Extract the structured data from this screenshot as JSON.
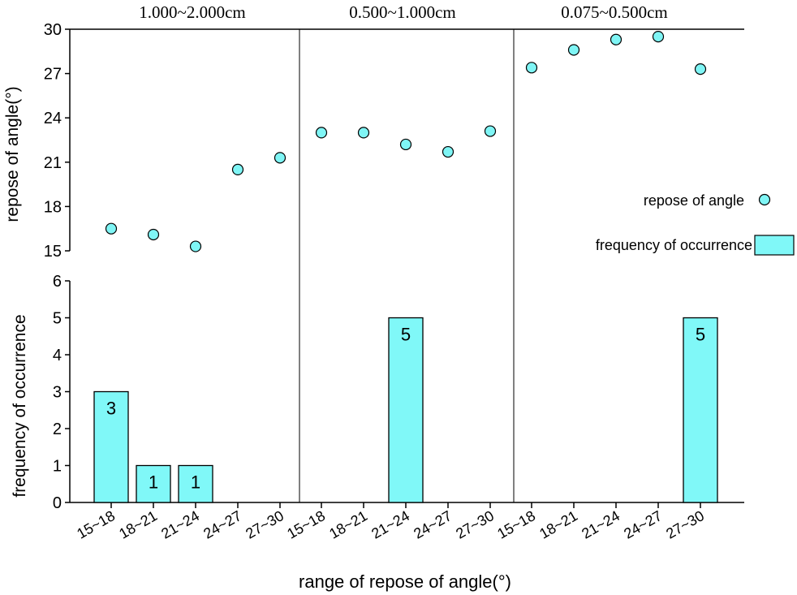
{
  "chart_data": {
    "type": "scatter+bar",
    "categories": [
      "15~18",
      "18~21",
      "21~24",
      "24~27",
      "27~30"
    ],
    "groups": [
      "1.000~2.000cm",
      "0.500~1.000cm",
      "0.075~0.500cm"
    ],
    "xlabel": "range of repose of angle(°)",
    "upper": {
      "type": "scatter",
      "ylabel": "repose of angle(°)",
      "ylim": [
        15,
        30
      ],
      "yticks": [
        "15",
        "18",
        "21",
        "24",
        "27",
        "30"
      ],
      "series": [
        {
          "name": "repose of angle",
          "values": [
            [
              16.5,
              16.1,
              15.3,
              20.5,
              21.3
            ],
            [
              23.0,
              23.0,
              22.2,
              21.7,
              23.1
            ],
            [
              27.4,
              28.6,
              29.3,
              29.5,
              27.3
            ]
          ]
        }
      ]
    },
    "lower": {
      "type": "bar",
      "ylabel": "frequency of occurrence",
      "ylim": [
        0,
        6
      ],
      "yticks": [
        "0",
        "1",
        "2",
        "3",
        "4",
        "5",
        "6"
      ],
      "series": [
        {
          "name": "frequency of occurrence",
          "values": [
            [
              3,
              1,
              1,
              0,
              0
            ],
            [
              0,
              0,
              5,
              0,
              0
            ],
            [
              0,
              0,
              0,
              0,
              5
            ]
          ],
          "labels": [
            [
              "3",
              "1",
              "1",
              "",
              ""
            ],
            [
              "",
              "",
              "5",
              "",
              ""
            ],
            [
              "",
              "",
              "",
              "",
              "5"
            ]
          ]
        }
      ]
    },
    "legend": {
      "position": "right",
      "items": [
        "repose of angle",
        "frequency of occurrence"
      ]
    },
    "colors": {
      "marker_fill": "#7ff5f5",
      "bar_fill": "#80f8f8",
      "outline": "#000000"
    }
  }
}
